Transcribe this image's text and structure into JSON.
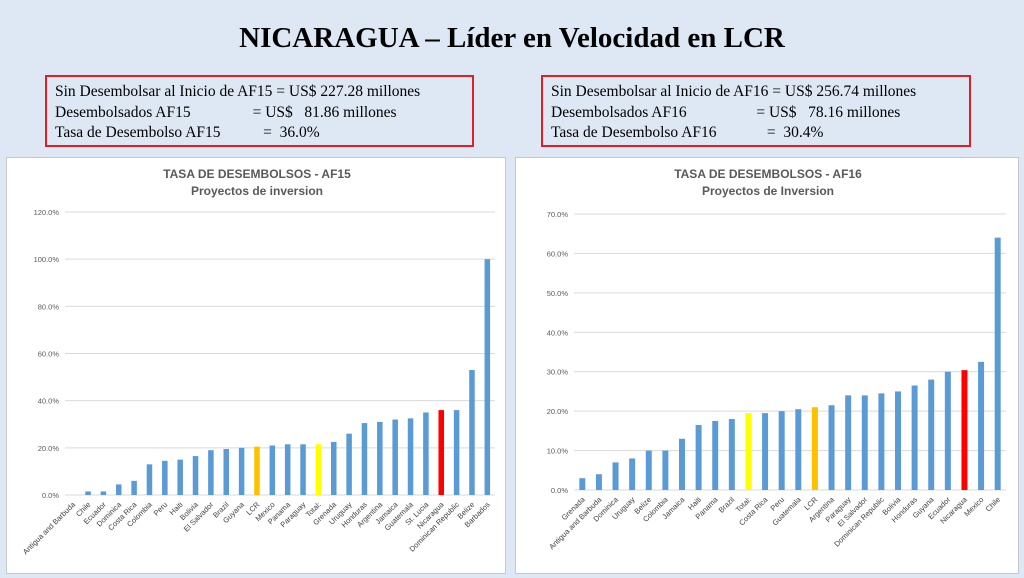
{
  "slide_title": "NICARAGUA – Líder en Velocidad en LCR",
  "boxes": [
    {
      "lines": [
        "Sin Desembolsar al Inicio de AF15 = US$ 227.28 millones",
        "Desembolsados AF15                = US$   81.86 millones",
        "Tasa de Desembolso AF15           =  36.0%"
      ]
    },
    {
      "lines": [
        "Sin Desembolsar al Inicio de AF16 = US$ 256.74 millones",
        "Desembolsados AF16                  = US$   78.16 millones",
        "Tasa de Desembolso AF16             =  30.4%"
      ]
    }
  ],
  "colors": {
    "bar": "#5b9bd5",
    "lcr": "#ffc000",
    "total": "#ffff00",
    "nicaragua": "#ff0000",
    "grid": "#d9d9d9"
  },
  "chart_data": [
    {
      "type": "bar",
      "title": "TASA DE DESEMBOLSOS - AF15",
      "subtitle": "Proyectos de inversion",
      "ylim": [
        0,
        120
      ],
      "yticks": [
        "0.0%",
        "20.0%",
        "40.0%",
        "60.0%",
        "80.0%",
        "100.0%",
        "120.0%"
      ],
      "grid": true,
      "categories": [
        "Antigua and Barbuda",
        "Chile",
        "Ecuador",
        "Dominica",
        "Costa Rica",
        "Colombia",
        "Peru",
        "Haiti",
        "Bolivia",
        "El Salvador",
        "Brazil",
        "Guyana",
        "LCR",
        "Mexico",
        "Panama",
        "Paraguay",
        "Total:",
        "Grenada",
        "Uruguay",
        "Honduras",
        "Argentina",
        "Jamaica",
        "Guatemala",
        "St. Lucia",
        "Nicaragua",
        "Dominican Republic",
        "Belize",
        "Barbados"
      ],
      "values": [
        0,
        1.5,
        1.5,
        4.5,
        6,
        13,
        14.5,
        15,
        16.5,
        19,
        19.5,
        20,
        20.5,
        21,
        21.5,
        21.5,
        21.5,
        22.5,
        26,
        30.5,
        31,
        32,
        32.5,
        35,
        36,
        36,
        53,
        100
      ]
    },
    {
      "type": "bar",
      "title": "TASA DE DESEMBOLSOS - AF16",
      "subtitle": "Proyectos de Inversion",
      "ylim": [
        0,
        70
      ],
      "yticks": [
        "0.0%",
        "10.0%",
        "20.0%",
        "30.0%",
        "40.0%",
        "50.0%",
        "60.0%",
        "70.0%"
      ],
      "grid": true,
      "categories": [
        "Grenada",
        "Antigua and Barbuda",
        "Dominica",
        "Uruguay",
        "Belize",
        "Colombia",
        "Jamaica",
        "Haiti",
        "Panama",
        "Brazil",
        "Total:",
        "Costa Rica",
        "Peru",
        "Guatemala",
        "LCR",
        "Argentina",
        "Paraguay",
        "El Salvador",
        "Dominican Republic",
        "Bolivia",
        "Honduras",
        "Guyana",
        "Ecuador",
        "Nicaragua",
        "Mexico",
        "Chile"
      ],
      "values": [
        3,
        4,
        7,
        8,
        10,
        10,
        13,
        16.5,
        17.5,
        18,
        19.5,
        19.5,
        20,
        20.5,
        21,
        21.5,
        24,
        24,
        24.5,
        25,
        26.5,
        28,
        30,
        30.4,
        32.5,
        64
      ]
    }
  ]
}
